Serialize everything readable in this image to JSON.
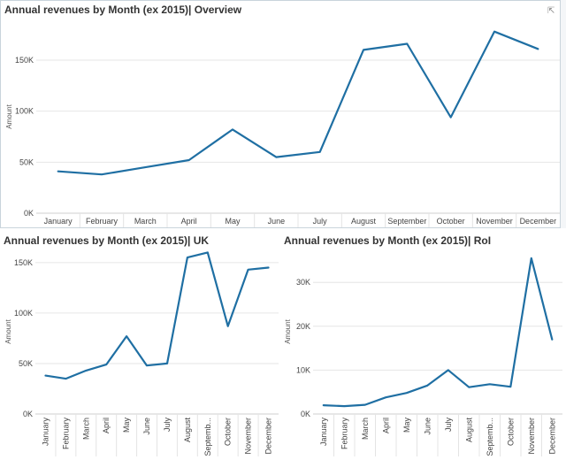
{
  "line_color": "#1f6fa3",
  "expand_icon": "external-link-icon",
  "chart_data": [
    {
      "id": "overview",
      "type": "line",
      "title": "Annual revenues by Month (ex 2015)| Overview",
      "ylabel": "Amount",
      "categories": [
        "January",
        "February",
        "March",
        "April",
        "May",
        "June",
        "July",
        "August",
        "September",
        "October",
        "November",
        "December"
      ],
      "values": [
        41000,
        38000,
        45000,
        52000,
        82000,
        55000,
        60000,
        160000,
        166000,
        94000,
        178000,
        161000
      ],
      "yticks": [
        0,
        50000,
        100000,
        150000
      ],
      "ytick_labels": [
        "0K",
        "50K",
        "100K",
        "150K"
      ],
      "ylim": [
        0,
        189000
      ],
      "grid": true
    },
    {
      "id": "uk",
      "type": "line",
      "title": "Annual revenues by Month (ex 2015)| UK",
      "ylabel": "Amount",
      "categories": [
        "January",
        "February",
        "March",
        "April",
        "May",
        "June",
        "July",
        "August",
        "September",
        "October",
        "November",
        "December"
      ],
      "category_labels": [
        "January",
        "February",
        "March",
        "April",
        "May",
        "June",
        "July",
        "August",
        "Septemb...",
        "October",
        "November",
        "December"
      ],
      "values": [
        38000,
        35000,
        43000,
        49000,
        77000,
        48000,
        50000,
        155000,
        160000,
        87000,
        143000,
        145000
      ],
      "yticks": [
        0,
        50000,
        100000,
        150000
      ],
      "ytick_labels": [
        "0K",
        "50K",
        "100K",
        "150K"
      ],
      "ylim": [
        0,
        163000
      ],
      "grid": true
    },
    {
      "id": "roi",
      "type": "line",
      "title": "Annual revenues by Month (ex 2015)| RoI",
      "ylabel": "Amount",
      "categories": [
        "January",
        "February",
        "March",
        "April",
        "May",
        "June",
        "July",
        "August",
        "September",
        "October",
        "November",
        "December"
      ],
      "category_labels": [
        "January",
        "February",
        "March",
        "April",
        "May",
        "June",
        "July",
        "August",
        "Septemb...",
        "October",
        "November",
        "December"
      ],
      "values": [
        2000,
        1800,
        2100,
        3800,
        4800,
        6500,
        10000,
        6100,
        6800,
        6200,
        35500,
        17000
      ],
      "yticks": [
        0,
        10000,
        20000,
        30000
      ],
      "ytick_labels": [
        "0K",
        "10K",
        "20K",
        "30K"
      ],
      "ylim": [
        0,
        37500
      ],
      "grid": true
    }
  ]
}
